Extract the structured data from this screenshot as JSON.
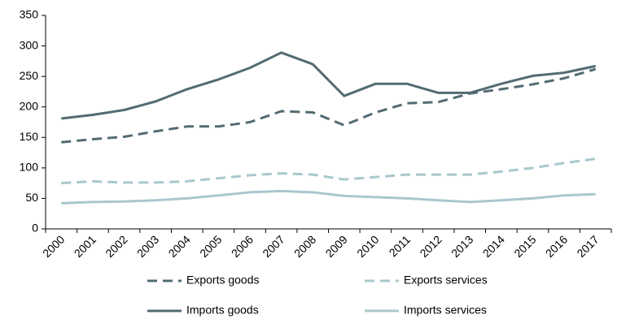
{
  "chart_data": {
    "type": "line",
    "title": "",
    "xlabel": "",
    "ylabel": "",
    "categories": [
      "2000",
      "2001",
      "2002",
      "2003",
      "2004",
      "2005",
      "2006",
      "2007",
      "2008",
      "2009",
      "2010",
      "2011",
      "2012",
      "2013",
      "2014",
      "2015",
      "2016",
      "2017"
    ],
    "ylim": [
      0,
      350
    ],
    "yticks": [
      0,
      50,
      100,
      150,
      200,
      250,
      300,
      350
    ],
    "grid": false,
    "legend_position": "bottom",
    "series": [
      {
        "name": "Exports goods",
        "style": "dashed",
        "color": "#536b73",
        "values": [
          142,
          147,
          151,
          160,
          168,
          168,
          175,
          193,
          191,
          170,
          191,
          206,
          208,
          222,
          229,
          237,
          247,
          262
        ]
      },
      {
        "name": "Exports services",
        "style": "dashed",
        "color": "#a8c8cd",
        "values": [
          75,
          78,
          76,
          76,
          78,
          83,
          88,
          91,
          89,
          81,
          85,
          89,
          89,
          89,
          94,
          100,
          108,
          115
        ]
      },
      {
        "name": "Imports goods",
        "style": "solid",
        "color": "#536b73",
        "values": [
          181,
          187,
          195,
          209,
          229,
          245,
          264,
          289,
          270,
          218,
          238,
          238,
          223,
          223,
          238,
          251,
          256,
          267
        ]
      },
      {
        "name": "Imports services",
        "style": "solid",
        "color": "#a8c8cd",
        "values": [
          42,
          44,
          45,
          47,
          50,
          55,
          60,
          62,
          60,
          54,
          52,
          50,
          47,
          44,
          47,
          50,
          55,
          57
        ]
      }
    ]
  }
}
